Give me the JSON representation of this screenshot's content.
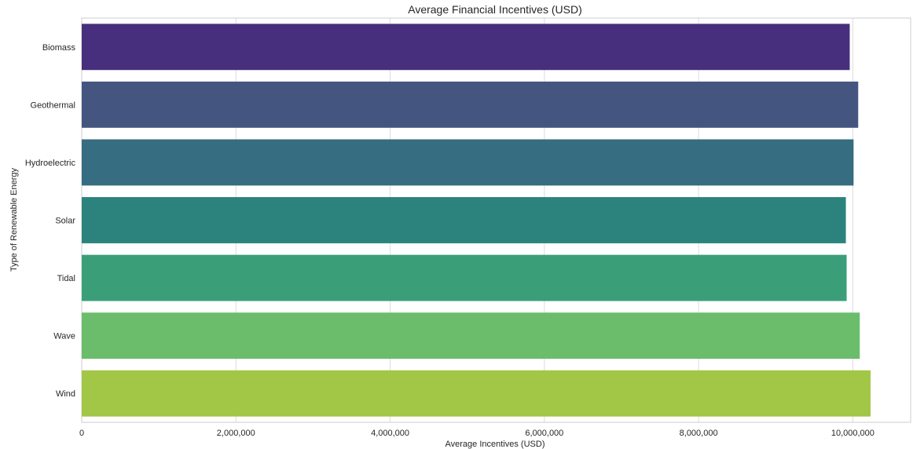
{
  "chart_data": {
    "type": "bar",
    "orientation": "horizontal",
    "title": "Average Financial Incentives (USD)",
    "xlabel": "Average Incentives (USD)",
    "ylabel": "Type of Renewable Energy",
    "categories": [
      "Biomass",
      "Geothermal",
      "Hydroelectric",
      "Solar",
      "Tidal",
      "Wave",
      "Wind"
    ],
    "values": [
      9960000,
      10070000,
      10010000,
      9910000,
      9920000,
      10090000,
      10230000
    ],
    "colors": [
      "#472f7d",
      "#445580",
      "#366d80",
      "#2c837d",
      "#3a9f78",
      "#6bbd6b",
      "#a2c645"
    ],
    "xlim": [
      0,
      10750000
    ],
    "xticks": [
      0,
      2000000,
      4000000,
      6000000,
      8000000,
      10000000
    ],
    "xtick_labels": [
      "0",
      "2,000,000",
      "4,000,000",
      "6,000,000",
      "8,000,000",
      "10,000,000"
    ],
    "grid": true
  }
}
